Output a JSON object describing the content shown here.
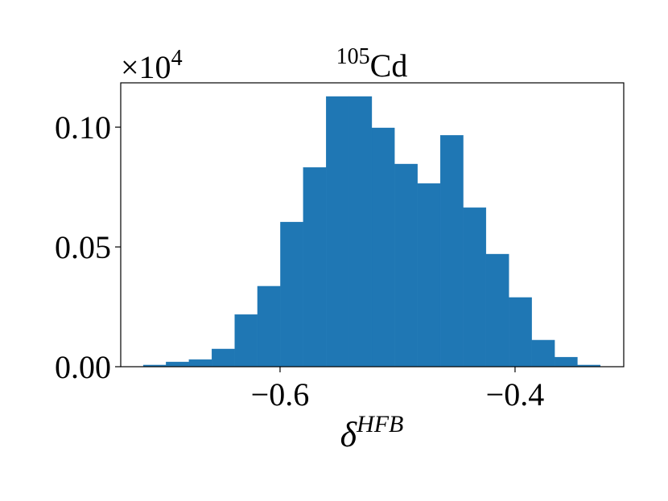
{
  "chart_data": {
    "type": "histogram",
    "title_sup": "105",
    "title": "Cd",
    "xlabel": "δ",
    "xlabel_sup": "HFB",
    "y_offset": "×10",
    "y_offset_sup": "4",
    "color": "#1f77b4",
    "bins": [
      -0.7164,
      -0.697,
      -0.6775,
      -0.6581,
      -0.6386,
      -0.6192,
      -0.5997,
      -0.5803,
      -0.5608,
      -0.5414,
      -0.5219,
      -0.5025,
      -0.483,
      -0.4636,
      -0.4441,
      -0.4247,
      -0.4052,
      -0.3858,
      -0.3663,
      -0.3469,
      -0.3274
    ],
    "values": [
      0.0007,
      0.002,
      0.003,
      0.0074,
      0.0218,
      0.0336,
      0.0604,
      0.0832,
      0.1128,
      0.1128,
      0.0997,
      0.0846,
      0.0765,
      0.0966,
      0.0664,
      0.047,
      0.0289,
      0.0111,
      0.004,
      0.0007
    ],
    "xlim": [
      -0.7356,
      -0.3075
    ],
    "ylim": [
      0,
      0.1185
    ],
    "xticks": [
      {
        "value": -0.6,
        "label": "−0.6"
      },
      {
        "value": -0.4,
        "label": "−0.4"
      }
    ],
    "yticks": [
      {
        "value": 0,
        "label": "0.00"
      },
      {
        "value": 0.05,
        "label": "0.05"
      },
      {
        "value": 0.1,
        "label": "0.10"
      }
    ],
    "grid": false
  }
}
